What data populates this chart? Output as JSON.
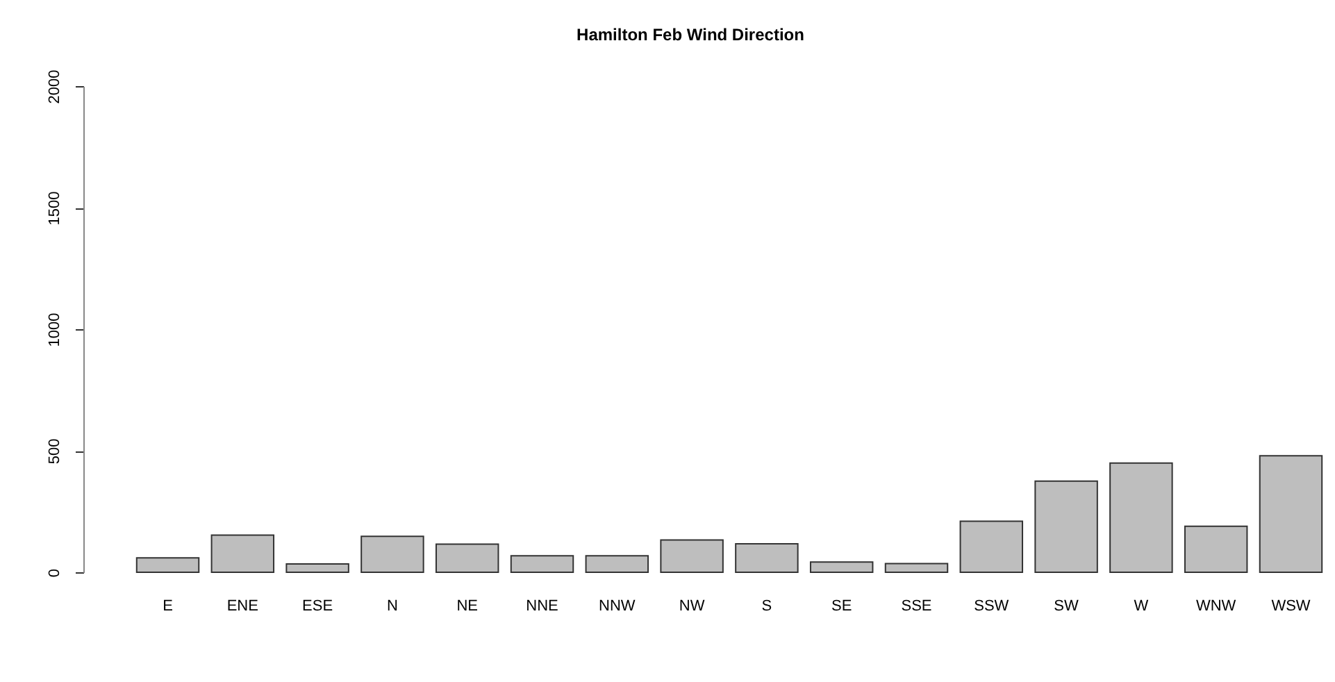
{
  "chart_data": {
    "type": "bar",
    "title": "Hamilton Feb Wind Direction",
    "categories": [
      "E",
      "ENE",
      "ESE",
      "N",
      "NE",
      "NNE",
      "NNW",
      "NW",
      "S",
      "SE",
      "SSE",
      "SSW",
      "SW",
      "W",
      "WNW",
      "WSW"
    ],
    "values": [
      59,
      153,
      34,
      148,
      116,
      68,
      68,
      133,
      117,
      42,
      36,
      210,
      375,
      449,
      189,
      479
    ],
    "color": "#bebebe",
    "ylim": [
      0,
      2000
    ],
    "yticks": [
      0,
      500,
      1000,
      1500,
      2000
    ],
    "grid": false
  }
}
